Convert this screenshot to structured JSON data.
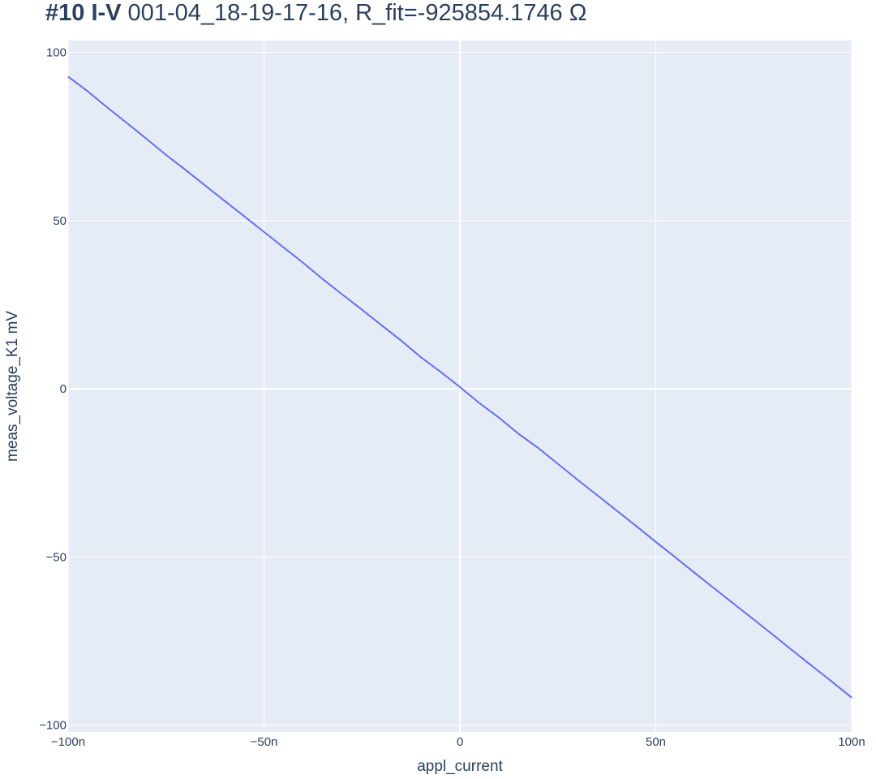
{
  "chart_data": {
    "type": "line",
    "title_bold": "#10 I-V",
    "title_rest": " 001-04_18-19-17-16, R_fit=-925854.1746 Ω",
    "xlabel": "appl_current",
    "ylabel": "meas_voltage_K1 mV",
    "xlim": [
      -100,
      100
    ],
    "ylim": [
      -102,
      103.5
    ],
    "x_unit_note": "n",
    "x_ticks": [
      -100,
      -50,
      0,
      50,
      100
    ],
    "x_tick_labels": [
      "−100n",
      "−50n",
      "0",
      "50n",
      "100n"
    ],
    "y_ticks": [
      -100,
      -50,
      0,
      50,
      100
    ],
    "y_tick_labels": [
      "−100",
      "−50",
      "0",
      "50",
      "100"
    ],
    "grid": true,
    "line_color": "#636efa",
    "plot_bg": "#e5ecf6",
    "series": [
      {
        "x": [
          -100,
          -95,
          -90,
          -85,
          -80,
          -75,
          -70,
          -65,
          -60,
          -55,
          -50,
          -45,
          -40,
          -35,
          -30,
          -25,
          -20,
          -15,
          -10,
          -5,
          0,
          5,
          10,
          15,
          20,
          25,
          30,
          35,
          40,
          45,
          50,
          55,
          60,
          65,
          70,
          75,
          80,
          85,
          90,
          95,
          100
        ],
        "y": [
          92.8,
          88.4,
          83.6,
          79.0,
          74.3,
          69.5,
          65.0,
          60.4,
          55.8,
          51.2,
          46.6,
          42.0,
          37.4,
          32.6,
          28.0,
          23.5,
          18.9,
          14.3,
          9.4,
          5.1,
          0.5,
          -4.3,
          -8.6,
          -13.4,
          -17.6,
          -22.3,
          -27.0,
          -31.6,
          -36.2,
          -40.8,
          -45.5,
          -50.1,
          -54.8,
          -59.4,
          -64.0,
          -68.6,
          -73.2,
          -77.9,
          -82.5,
          -87.1,
          -91.8
        ]
      }
    ]
  }
}
